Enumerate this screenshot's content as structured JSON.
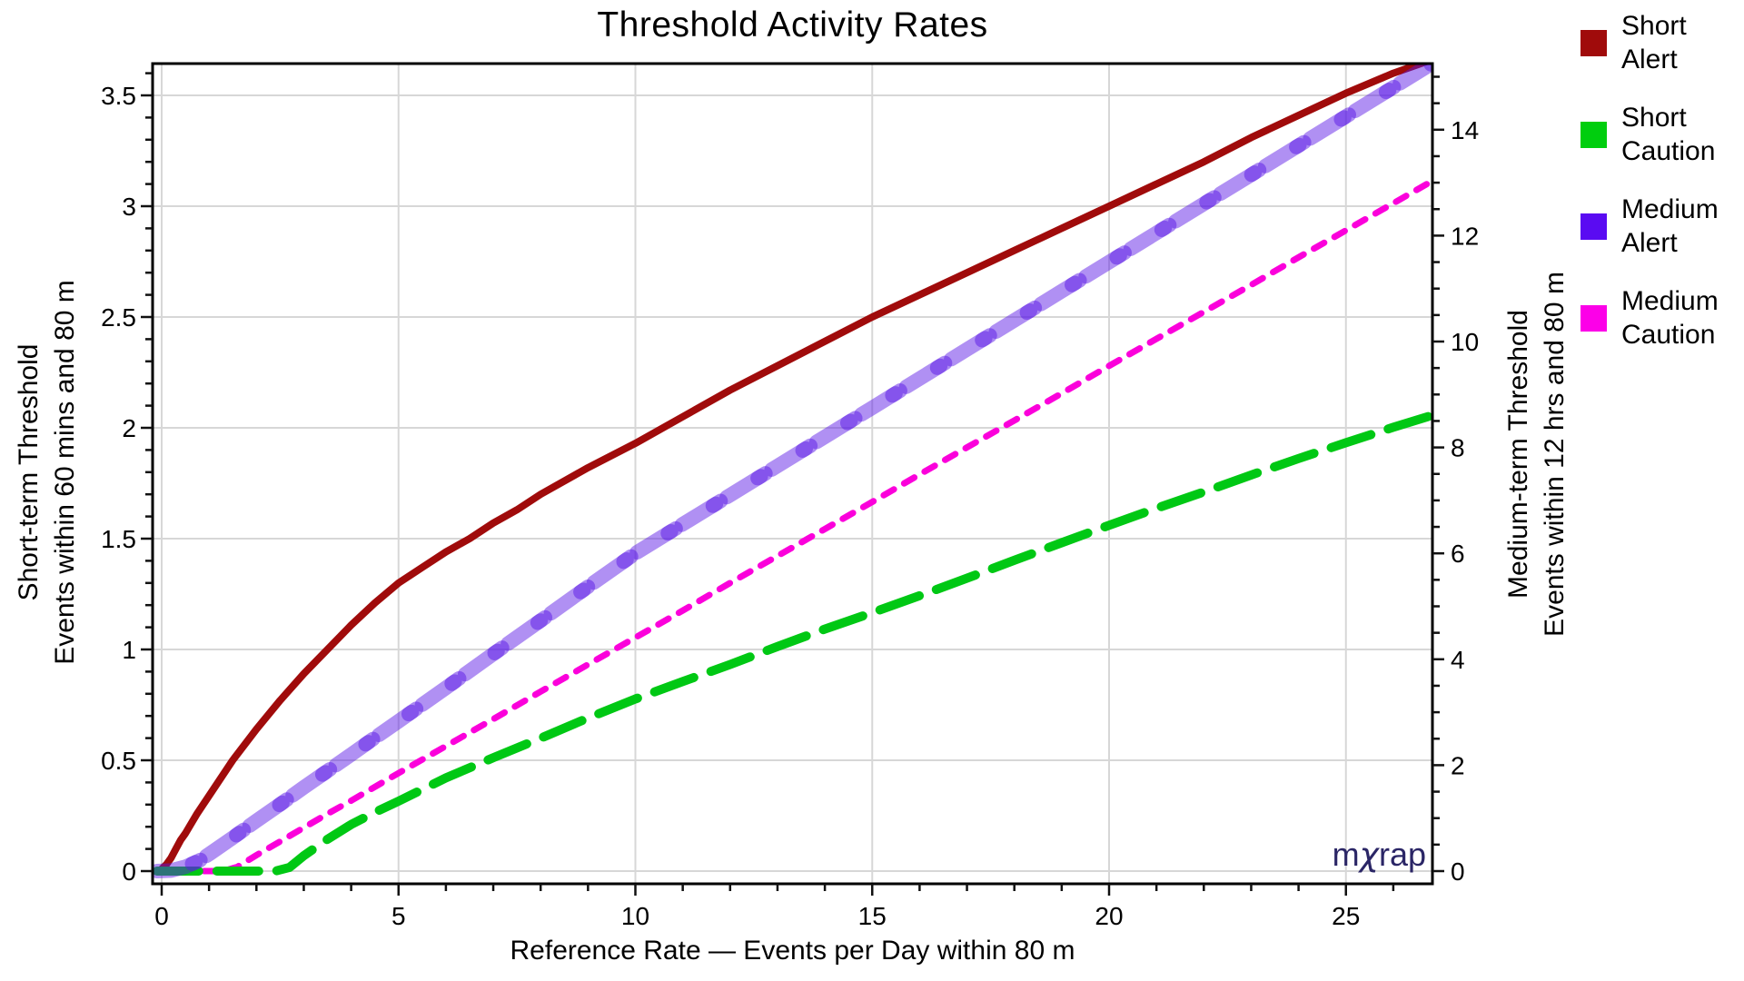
{
  "chart_data": {
    "type": "line",
    "title": "Threshold Activity Rates",
    "xlabel": "Reference Rate — Events per Day within 80 m",
    "x_axis": {
      "range": [
        -0.19,
        26.8
      ],
      "tick_labels": [
        "0",
        "5",
        "10",
        "15",
        "20",
        "25"
      ],
      "tick_values": [
        0,
        5,
        10,
        15,
        20,
        25
      ],
      "minor_step": 1,
      "minor_max": 26
    },
    "left_axis": {
      "label_line1": "Short-term Threshold",
      "label_line2": "Events within 60 mins and 80 m",
      "range": [
        -0.06,
        3.64
      ],
      "tick_labels": [
        "0",
        "0.5",
        "1",
        "1.5",
        "2",
        "2.5",
        "3",
        "3.5"
      ],
      "tick_values": [
        0,
        0.5,
        1,
        1.5,
        2,
        2.5,
        3,
        3.5
      ],
      "minor_step": 0.1,
      "minor_max": 3.6
    },
    "right_axis": {
      "label_line1": "Medium-term Threshold",
      "label_line2": "Events within 12 hrs and 80 m",
      "range": [
        -0.25,
        15.25
      ],
      "tick_labels": [
        "0",
        "2",
        "4",
        "6",
        "8",
        "10",
        "12",
        "14"
      ],
      "tick_values": [
        0,
        2,
        4,
        6,
        8,
        10,
        12,
        14
      ],
      "minor_step": 0.5,
      "minor_max": 15
    },
    "grid": {
      "color": "#D7D7D7",
      "x_values": [
        0,
        5,
        10,
        15,
        20,
        25
      ],
      "left_values": [
        0,
        0.5,
        1,
        1.5,
        2,
        2.5,
        3,
        3.5
      ]
    },
    "series": [
      {
        "name": "Short Alert",
        "axis": "left",
        "color": "#A00B0B",
        "opacity": 1,
        "width": 8,
        "dash": "",
        "style": "solid",
        "points": [
          [
            0,
            0.01
          ],
          [
            0.1,
            0.03
          ],
          [
            0.2,
            0.06
          ],
          [
            0.3,
            0.1
          ],
          [
            0.4,
            0.14
          ],
          [
            0.5,
            0.17
          ],
          [
            0.75,
            0.26
          ],
          [
            1,
            0.34
          ],
          [
            1.25,
            0.42
          ],
          [
            1.5,
            0.5
          ],
          [
            2,
            0.64
          ],
          [
            2.5,
            0.77
          ],
          [
            3,
            0.89
          ],
          [
            3.5,
            1.0
          ],
          [
            4,
            1.11
          ],
          [
            4.5,
            1.21
          ],
          [
            5,
            1.3
          ],
          [
            5.5,
            1.37
          ],
          [
            6,
            1.44
          ],
          [
            6.5,
            1.5
          ],
          [
            7,
            1.57
          ],
          [
            7.5,
            1.63
          ],
          [
            8,
            1.7
          ],
          [
            9,
            1.82
          ],
          [
            10,
            1.93
          ],
          [
            11,
            2.05
          ],
          [
            12,
            2.17
          ],
          [
            13,
            2.28
          ],
          [
            14,
            2.39
          ],
          [
            15,
            2.5
          ],
          [
            16,
            2.6
          ],
          [
            17,
            2.7
          ],
          [
            18,
            2.8
          ],
          [
            19,
            2.9
          ],
          [
            20,
            3.0
          ],
          [
            21,
            3.1
          ],
          [
            22,
            3.2
          ],
          [
            23,
            3.31
          ],
          [
            24,
            3.41
          ],
          [
            25,
            3.51
          ],
          [
            26,
            3.6
          ],
          [
            26.8,
            3.66
          ]
        ]
      },
      {
        "name": "Medium Caution",
        "axis": "right",
        "color": "#FB00DB",
        "opacity": 1,
        "width": 7,
        "dash": "13 13",
        "style": "dotted",
        "points": [
          [
            -0.1,
            0
          ],
          [
            1.3,
            0
          ],
          [
            1.6,
            0.08
          ],
          [
            2,
            0.3
          ],
          [
            2.5,
            0.56
          ],
          [
            3,
            0.82
          ],
          [
            3.5,
            1.08
          ],
          [
            4,
            1.33
          ],
          [
            5,
            1.85
          ],
          [
            6,
            2.36
          ],
          [
            7,
            2.87
          ],
          [
            8,
            3.39
          ],
          [
            9,
            3.9
          ],
          [
            10,
            4.41
          ],
          [
            11,
            4.92
          ],
          [
            12,
            5.44
          ],
          [
            13,
            5.95
          ],
          [
            14,
            6.46
          ],
          [
            15,
            6.97
          ],
          [
            16,
            7.49
          ],
          [
            17,
            8.0
          ],
          [
            18,
            8.51
          ],
          [
            19,
            9.02
          ],
          [
            20,
            9.54
          ],
          [
            21,
            10.05
          ],
          [
            22,
            10.56
          ],
          [
            23,
            11.07
          ],
          [
            24,
            11.59
          ],
          [
            25,
            12.1
          ],
          [
            26,
            12.61
          ],
          [
            26.8,
            13.02
          ]
        ]
      },
      {
        "name": "Short Caution",
        "axis": "right",
        "color": "#00C814",
        "opacity": 1,
        "width": 10,
        "dash": "46 20",
        "style": "dashed",
        "points": [
          [
            -0.1,
            0
          ],
          [
            2.4,
            0
          ],
          [
            2.7,
            0.07
          ],
          [
            3,
            0.29
          ],
          [
            3.5,
            0.6
          ],
          [
            4,
            0.88
          ],
          [
            4.5,
            1.11
          ],
          [
            5,
            1.32
          ],
          [
            6,
            1.76
          ],
          [
            7,
            2.14
          ],
          [
            8,
            2.51
          ],
          [
            9,
            2.89
          ],
          [
            10,
            3.25
          ],
          [
            11,
            3.58
          ],
          [
            12,
            3.9
          ],
          [
            13,
            4.24
          ],
          [
            14,
            4.57
          ],
          [
            15,
            4.88
          ],
          [
            16,
            5.2
          ],
          [
            17,
            5.53
          ],
          [
            18,
            5.87
          ],
          [
            19,
            6.2
          ],
          [
            20,
            6.53
          ],
          [
            21,
            6.85
          ],
          [
            22,
            7.16
          ],
          [
            23,
            7.48
          ],
          [
            24,
            7.79
          ],
          [
            25,
            8.09
          ],
          [
            26,
            8.38
          ],
          [
            26.8,
            8.6
          ]
        ]
      },
      {
        "name": "Medium Alert",
        "axis": "right",
        "color": "#5A17E6",
        "opacity": 0.48,
        "width": 16,
        "dash": "44 14",
        "style": "thick-dashed",
        "overlay": {
          "dash": "10 48",
          "offset": -40,
          "opacity": 0.5
        },
        "points": [
          [
            -0.1,
            0
          ],
          [
            0.2,
            0.01
          ],
          [
            0.5,
            0.08
          ],
          [
            0.8,
            0.2
          ],
          [
            1,
            0.32
          ],
          [
            1.5,
            0.63
          ],
          [
            2,
            0.95
          ],
          [
            2.5,
            1.26
          ],
          [
            3,
            1.58
          ],
          [
            3.5,
            1.89
          ],
          [
            4,
            2.2
          ],
          [
            4.5,
            2.52
          ],
          [
            5,
            2.83
          ],
          [
            6,
            3.46
          ],
          [
            7,
            4.1
          ],
          [
            8,
            4.73
          ],
          [
            9,
            5.37
          ],
          [
            10,
            6.0
          ],
          [
            11,
            6.55
          ],
          [
            12,
            7.1
          ],
          [
            13,
            7.65
          ],
          [
            14,
            8.2
          ],
          [
            15,
            8.75
          ],
          [
            16,
            9.3
          ],
          [
            17,
            9.85
          ],
          [
            18,
            10.4
          ],
          [
            19,
            10.95
          ],
          [
            20,
            11.5
          ],
          [
            21,
            12.05
          ],
          [
            22,
            12.6
          ],
          [
            23,
            13.15
          ],
          [
            24,
            13.7
          ],
          [
            25,
            14.25
          ],
          [
            26,
            14.8
          ],
          [
            26.8,
            15.24
          ]
        ]
      }
    ],
    "legend_position": "right"
  },
  "legend": {
    "items": [
      {
        "line1": "Short",
        "line2": "Alert",
        "color": "#A00B0B"
      },
      {
        "line1": "Short",
        "line2": "Caution",
        "color": "#00CE0E"
      },
      {
        "line1": "Medium",
        "line2": "Alert",
        "color": "#5A0BF2"
      },
      {
        "line1": "Medium",
        "line2": "Caution",
        "color": "#FC00E8"
      }
    ]
  },
  "watermark": {
    "pre": "m",
    "chi": "χ",
    "post": "rap",
    "color": "#2B2666"
  }
}
